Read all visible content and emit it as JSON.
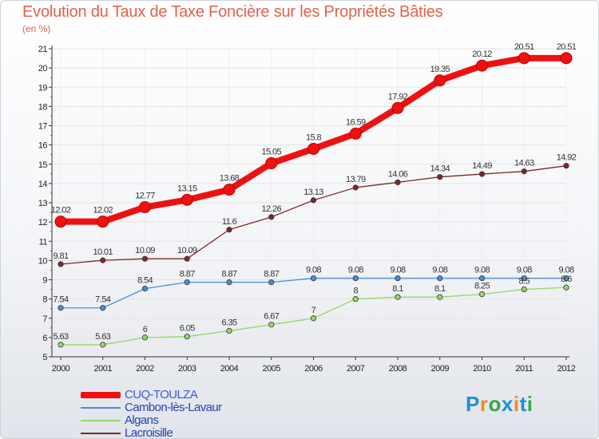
{
  "title": "Evolution du Taux de Taxe Foncière sur les Propriétés Bâties",
  "unit_label": "(en %)",
  "logo": {
    "letters": [
      "P",
      "r",
      "o",
      "x",
      "i",
      "t",
      "i"
    ],
    "colors": [
      "#1d8fd6",
      "#f08a1c",
      "#33a847",
      "#1d8fd6",
      "#f08a1c",
      "#1d8fd6",
      "#33a847"
    ]
  },
  "chart_data": {
    "type": "line",
    "title": "Evolution du Taux de Taxe Foncière sur les Propriétés Bâties",
    "ylabel": "(en %)",
    "ylim": [
      5,
      21
    ],
    "yticks": [
      5,
      6,
      7,
      8,
      9,
      10,
      11,
      12,
      13,
      14,
      15,
      16,
      17,
      18,
      19,
      20,
      21
    ],
    "x": [
      "2000",
      "2001",
      "2002",
      "2003",
      "2004",
      "2005",
      "2006",
      "2007",
      "2008",
      "2009",
      "2010",
      "2011",
      "2012"
    ],
    "legend_position": "bottom-left",
    "series": [
      {
        "name": "CUQ-TOULZA",
        "color": "#ee1111",
        "thick": true,
        "values": [
          12.02,
          12.02,
          12.77,
          13.15,
          13.68,
          15.05,
          15.8,
          16.59,
          17.92,
          19.35,
          20.12,
          20.51,
          20.51
        ],
        "labels": [
          "12.02",
          "12.02",
          "12.77",
          "13.15",
          "13.68",
          "15.05",
          "15.8",
          "16.59",
          "17.92",
          "19.35",
          "20.12",
          "20.51",
          "20.51"
        ]
      },
      {
        "name": "Cambon-lès-Lavaur",
        "color": "#4a8ed6",
        "values": [
          7.54,
          7.54,
          8.54,
          8.87,
          8.87,
          8.87,
          9.08,
          9.08,
          9.08,
          9.08,
          9.08,
          9.08,
          9.08
        ],
        "labels": [
          "7.54",
          "7.54",
          "8.54",
          "8.87",
          "8.87",
          "8.87",
          "9.08",
          "9.08",
          "9.08",
          "9.08",
          "9.08",
          "9.08",
          "9.08"
        ]
      },
      {
        "name": "Algans",
        "color": "#97d66a",
        "values": [
          5.63,
          5.63,
          6,
          6.05,
          6.35,
          6.67,
          7,
          8,
          8.1,
          8.1,
          8.25,
          8.5,
          8.6
        ],
        "labels": [
          "5.63",
          "5.63",
          "6",
          "6.05",
          "6.35",
          "6.67",
          "7",
          "8",
          "8.1",
          "8.1",
          "8.25",
          "8.5",
          "8.6"
        ]
      },
      {
        "name": "Lacroisille",
        "color": "#7a2a2a",
        "values": [
          9.81,
          10.01,
          10.09,
          10.09,
          11.6,
          12.26,
          13.13,
          13.79,
          14.06,
          14.34,
          14.49,
          14.63,
          14.92
        ],
        "labels": [
          "9.81",
          "10.01",
          "10.09",
          "10.09",
          "11.6",
          "12.26",
          "13.13",
          "13.79",
          "14.06",
          "14.34",
          "14.49",
          "14.63",
          "14.92"
        ]
      }
    ]
  }
}
